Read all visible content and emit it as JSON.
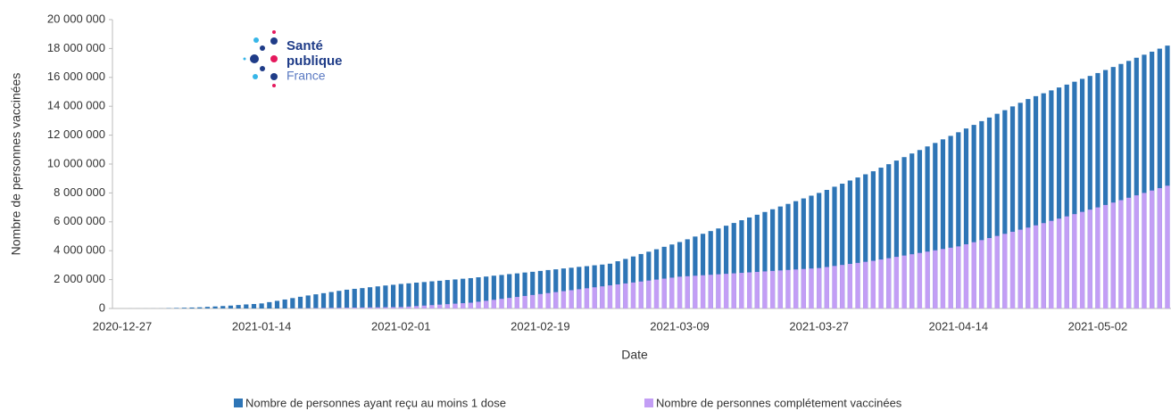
{
  "chart_data": {
    "type": "bar",
    "logo": {
      "line1": "Santé",
      "line2": "publique",
      "line3": "France"
    },
    "x_label": "Date",
    "y_label": "Nombre de personnes vaccinées",
    "categories": [
      "2020-12-27",
      null,
      null,
      null,
      null,
      null,
      null,
      null,
      null,
      null,
      null,
      null,
      null,
      null,
      null,
      null,
      null,
      null,
      "2021-01-14",
      null,
      null,
      null,
      null,
      null,
      null,
      null,
      null,
      null,
      null,
      null,
      null,
      null,
      null,
      null,
      null,
      null,
      "2021-02-01",
      null,
      null,
      null,
      null,
      null,
      null,
      null,
      null,
      null,
      null,
      null,
      null,
      null,
      null,
      null,
      null,
      null,
      "2021-02-19",
      null,
      null,
      null,
      null,
      null,
      null,
      null,
      null,
      null,
      null,
      null,
      null,
      null,
      null,
      null,
      null,
      null,
      "2021-03-09",
      null,
      null,
      null,
      null,
      null,
      null,
      null,
      null,
      null,
      null,
      null,
      null,
      null,
      null,
      null,
      null,
      null,
      "2021-03-27",
      null,
      null,
      null,
      null,
      null,
      null,
      null,
      null,
      null,
      null,
      null,
      null,
      null,
      null,
      null,
      null,
      null,
      "2021-04-14",
      null,
      null,
      null,
      null,
      null,
      null,
      null,
      null,
      null,
      null,
      null,
      null,
      null,
      null,
      null,
      null,
      null,
      "2021-05-02",
      null,
      null,
      null,
      null,
      null,
      null,
      null,
      null,
      null
    ],
    "series": [
      {
        "name": "Nombre de personnes ayant reçu au moins 1 dose",
        "color": "#2e75b6",
        "values": [
          1000,
          2000,
          2000,
          3000,
          4000,
          5000,
          20000,
          35000,
          50000,
          65000,
          80000,
          110000,
          140000,
          170000,
          200000,
          240000,
          280000,
          310000,
          350000,
          440000,
          530000,
          620000,
          720000,
          810000,
          900000,
          980000,
          1060000,
          1140000,
          1220000,
          1300000,
          1360000,
          1410000,
          1470000,
          1530000,
          1590000,
          1640000,
          1700000,
          1740000,
          1790000,
          1830000,
          1880000,
          1920000,
          1970000,
          2010000,
          2060000,
          2100000,
          2160000,
          2210000,
          2270000,
          2320000,
          2380000,
          2430000,
          2490000,
          2540000,
          2600000,
          2660000,
          2710000,
          2770000,
          2820000,
          2880000,
          2930000,
          2990000,
          3040000,
          3100000,
          3270000,
          3430000,
          3600000,
          3770000,
          3930000,
          4100000,
          4270000,
          4430000,
          4600000,
          4790000,
          4980000,
          5170000,
          5360000,
          5540000,
          5730000,
          5920000,
          6110000,
          6300000,
          6490000,
          6680000,
          6870000,
          7060000,
          7240000,
          7430000,
          7620000,
          7810000,
          8000000,
          8210000,
          8430000,
          8640000,
          8860000,
          9070000,
          9290000,
          9500000,
          9750000,
          9990000,
          10240000,
          10480000,
          10730000,
          10970000,
          11220000,
          11460000,
          11710000,
          11950000,
          12200000,
          12460000,
          12710000,
          12970000,
          13220000,
          13480000,
          13730000,
          13990000,
          14240000,
          14500000,
          14700000,
          14900000,
          15100000,
          15300000,
          15500000,
          15700000,
          15900000,
          16100000,
          16300000,
          16510000,
          16720000,
          16930000,
          17140000,
          17360000,
          17570000,
          17780000,
          17990000,
          18200000
        ]
      },
      {
        "name": "Nombre de personnes complétement vaccinées",
        "color": "#c39ef5",
        "values": [
          0,
          0,
          0,
          0,
          0,
          0,
          0,
          0,
          0,
          0,
          0,
          0,
          0,
          0,
          0,
          0,
          0,
          0,
          0,
          0,
          0,
          1000,
          8000,
          14000,
          21000,
          27000,
          34000,
          41000,
          47000,
          54000,
          60000,
          67000,
          74000,
          80000,
          87000,
          93000,
          100000,
          133000,
          167000,
          200000,
          233000,
          267000,
          300000,
          333000,
          367000,
          400000,
          467000,
          533000,
          600000,
          667000,
          733000,
          800000,
          867000,
          933000,
          1000000,
          1067000,
          1133000,
          1200000,
          1267000,
          1333000,
          1400000,
          1467000,
          1533000,
          1600000,
          1667000,
          1733000,
          1800000,
          1867000,
          1933000,
          2000000,
          2067000,
          2133000,
          2200000,
          2233000,
          2267000,
          2300000,
          2333000,
          2367000,
          2400000,
          2433000,
          2467000,
          2500000,
          2533000,
          2567000,
          2600000,
          2633000,
          2667000,
          2700000,
          2733000,
          2767000,
          2800000,
          2871000,
          2943000,
          3014000,
          3086000,
          3157000,
          3229000,
          3300000,
          3391000,
          3482000,
          3573000,
          3664000,
          3755000,
          3845000,
          3936000,
          4027000,
          4118000,
          4209000,
          4300000,
          4444000,
          4589000,
          4733000,
          4878000,
          5022000,
          5167000,
          5311000,
          5456000,
          5600000,
          5756000,
          5911000,
          6067000,
          6222000,
          6378000,
          6533000,
          6689000,
          6844000,
          7000000,
          7167000,
          7333000,
          7500000,
          7667000,
          7833000,
          8000000,
          8167000,
          8333000,
          8500000
        ]
      }
    ],
    "ylim": [
      0,
      20000000
    ],
    "yticks": [
      0,
      {
        "value": 2000000,
        "label": "2 000 000"
      },
      {
        "value": 4000000,
        "label": "4 000 000"
      },
      {
        "value": 6000000,
        "label": "6 000 000"
      },
      {
        "value": 8000000,
        "label": "8 000 000"
      },
      {
        "value": 10000000,
        "label": "10 000 000"
      },
      {
        "value": 12000000,
        "label": "12 000 000"
      },
      {
        "value": 14000000,
        "label": "14 000 000"
      },
      {
        "value": 16000000,
        "label": "16 000 000"
      },
      {
        "value": 18000000,
        "label": "18 000 000"
      },
      {
        "value": 20000000,
        "label": "20 000 000"
      }
    ],
    "grid": false,
    "legend": "bottom"
  }
}
